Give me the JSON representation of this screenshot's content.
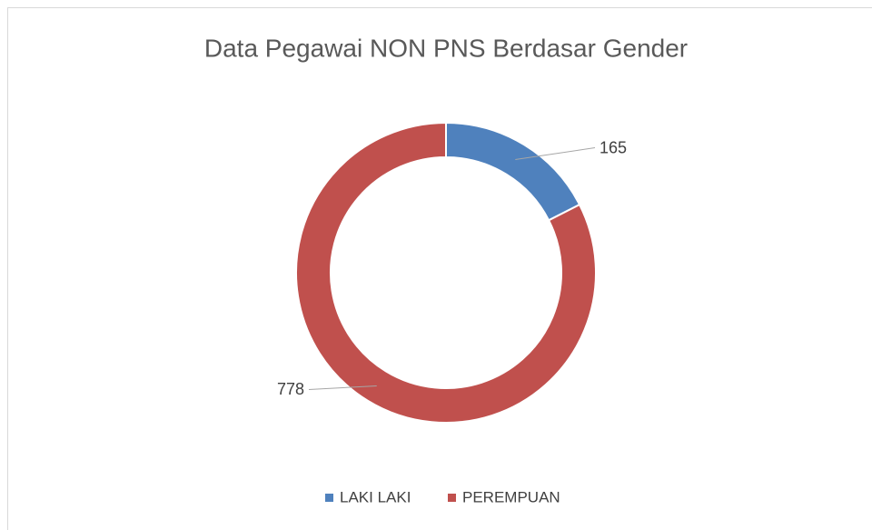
{
  "chart_data": {
    "type": "donut",
    "title": "Data Pegawai NON PNS Berdasar Gender",
    "categories": [
      "LAKI LAKI",
      "PEREMPUAN"
    ],
    "values": [
      165,
      778
    ],
    "colors": [
      "#4f81bd",
      "#c0504d"
    ]
  }
}
